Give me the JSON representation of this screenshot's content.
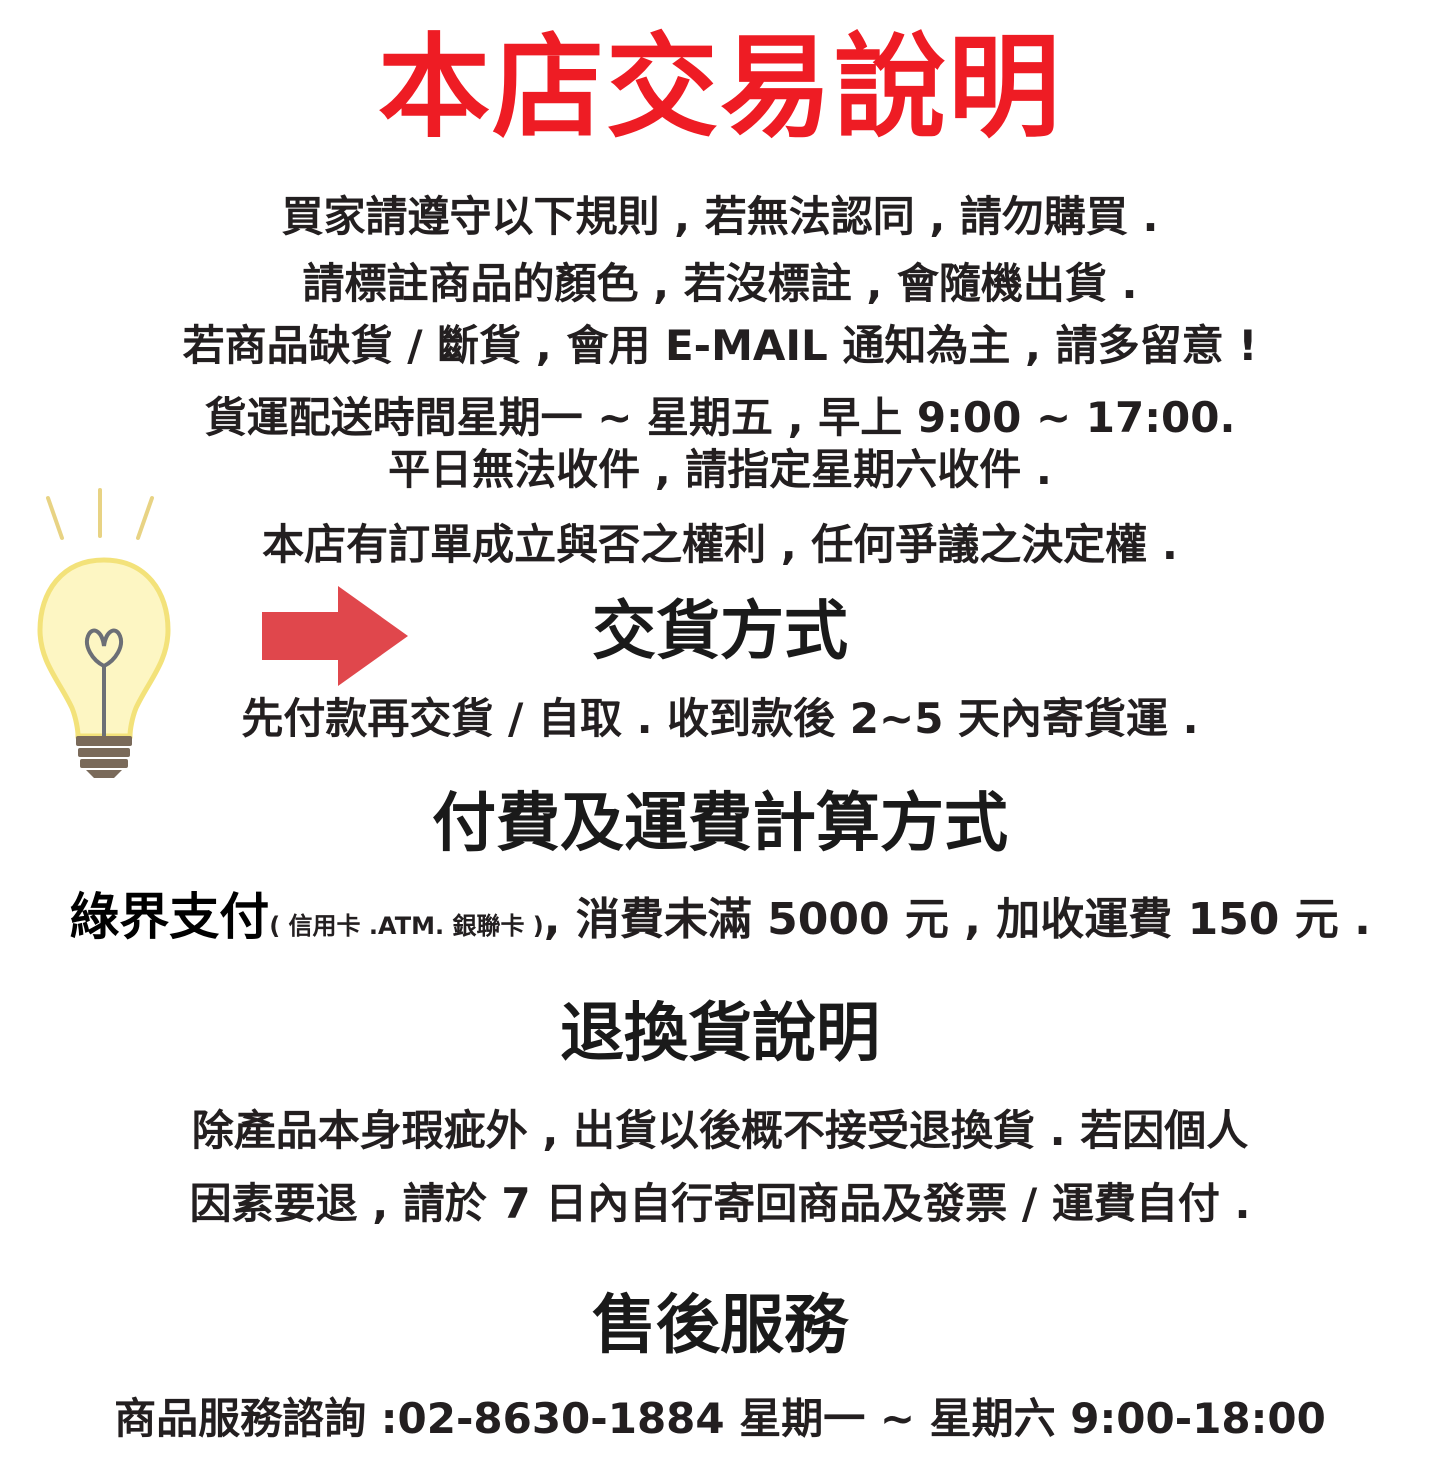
{
  "title": "本店交易說明",
  "rules": {
    "line1": "買家請遵守以下規則 , 若無法認同 , 請勿購買 .",
    "line2": "請標註商品的顏色 , 若沒標註 , 會隨機出貨 .",
    "line3": "若商品缺貨 / 斷貨 , 會用 E-MAIL 通知為主 , 請多留意 !",
    "line4": "貨運配送時間星期一 ~ 星期五 , 早上 9:00 ~ 17:00.",
    "line5": "平日無法收件 , 請指定星期六收件 .",
    "line6": "本店有訂單成立與否之權利 , 任何爭議之決定權 ."
  },
  "delivery": {
    "heading": "交貨方式",
    "text": "先付款再交貨 / 自取 . 收到款後 2~5 天內寄貨運 ."
  },
  "payment": {
    "heading": "付費及運費計算方式",
    "name": "綠界支付",
    "methods": "( 信用卡 .ATM. 銀聯卡 )",
    "text": ", 消費未滿 5000 元 , 加收運費 150 元 ."
  },
  "returns": {
    "heading": "退換貨說明",
    "line1": "除產品本身瑕疵外 , 出貨以後概不接受退換貨 . 若因個人",
    "line2": "因素要退 , 請於 7 日內自行寄回商品及發票 / 運費自付 ."
  },
  "after_sales": {
    "heading": "售後服務",
    "text": "商品服務諮詢 :02-8630-1884 星期一 ~ 星期六 9:00-18:00"
  },
  "icons": {
    "bulb": "lightbulb-icon",
    "arrow": "arrow-right-icon"
  },
  "colors": {
    "title": "#ee1c24",
    "arrow": "#e0474c",
    "bulb_glass": "#fdf6c3",
    "bulb_outline": "#f3e27a",
    "bulb_rays": "#e8d384",
    "bulb_base": "#7a6a5a",
    "text": "#231f20"
  }
}
